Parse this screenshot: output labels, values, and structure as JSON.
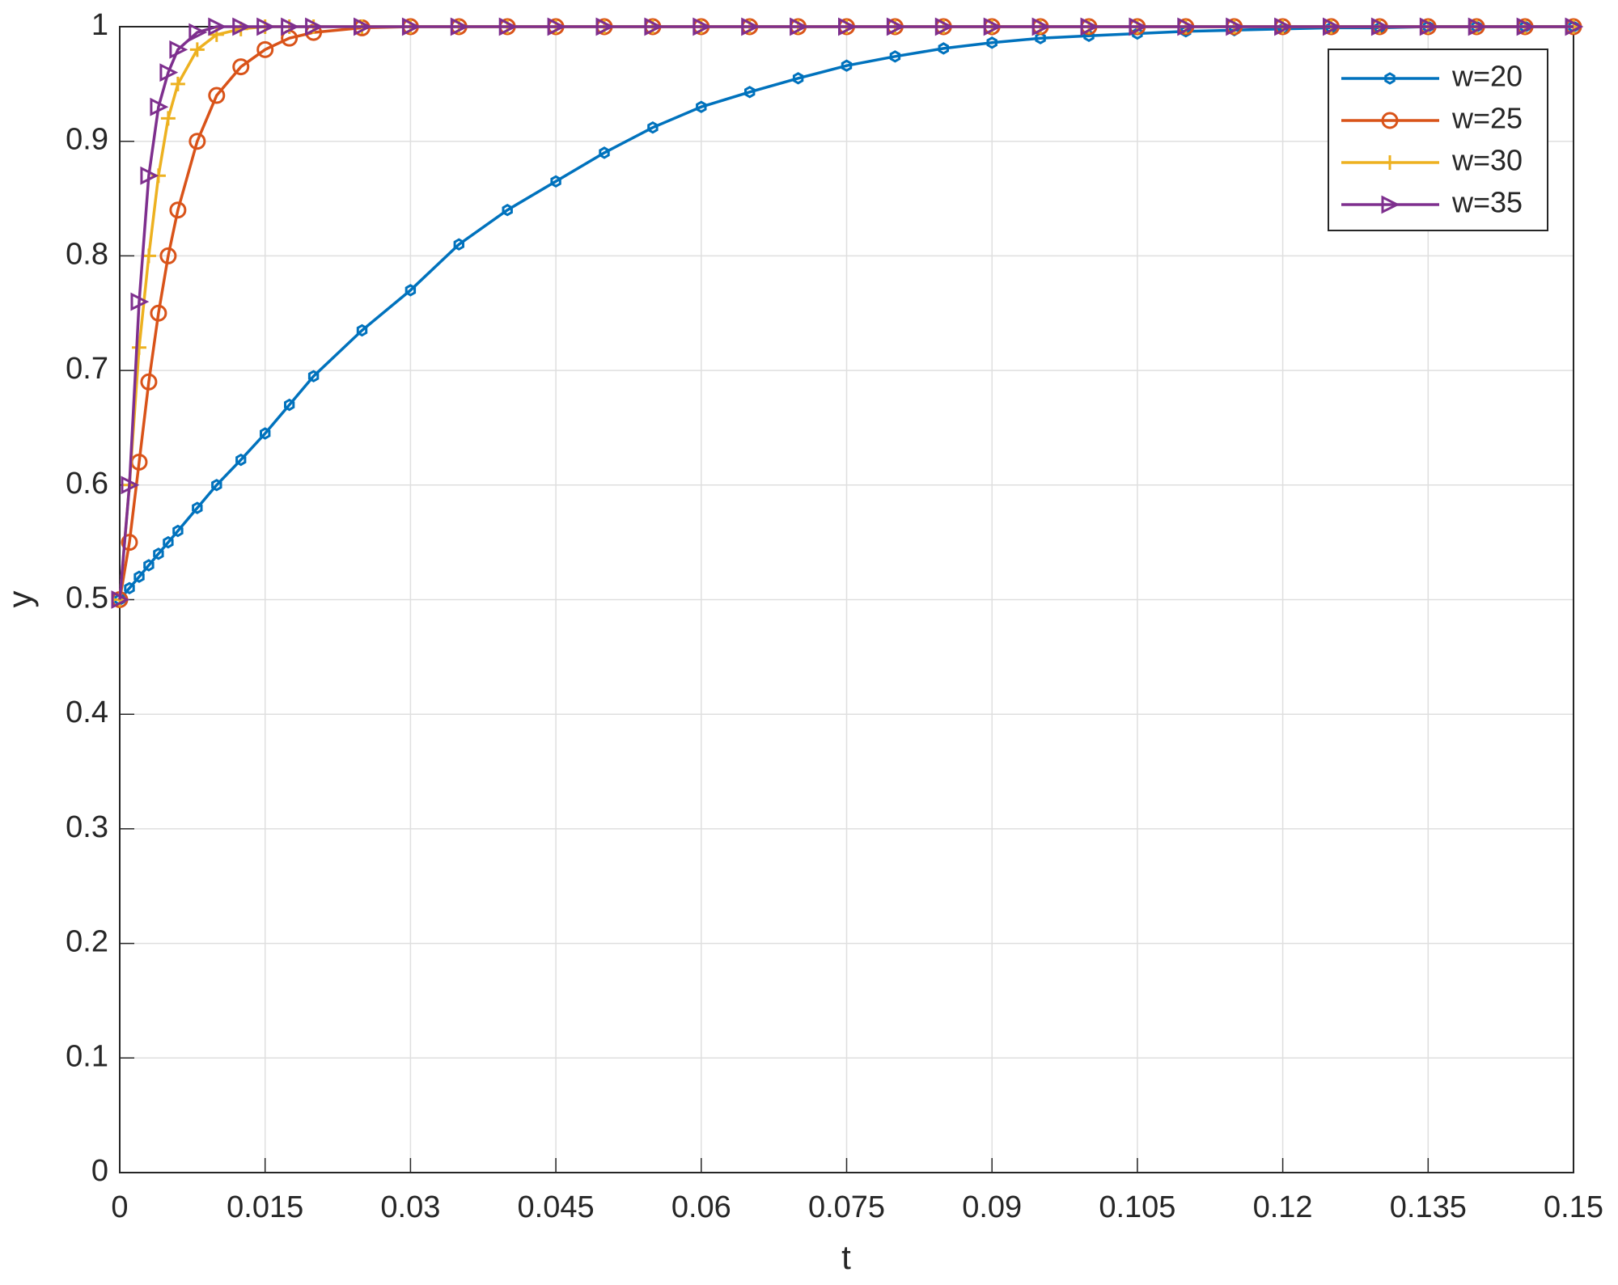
{
  "chart_data": {
    "type": "line",
    "x_label": "t",
    "y_label": "y",
    "x": [
      0,
      0.001,
      0.002,
      0.003,
      0.004,
      0.005,
      0.006,
      0.008,
      0.01,
      0.0125,
      0.015,
      0.0175,
      0.02,
      0.025,
      0.03,
      0.035,
      0.04,
      0.045,
      0.05,
      0.055,
      0.06,
      0.065,
      0.07,
      0.075,
      0.08,
      0.085,
      0.09,
      0.095,
      0.1,
      0.105,
      0.11,
      0.115,
      0.12,
      0.125,
      0.13,
      0.135,
      0.14,
      0.145,
      0.15
    ],
    "series": [
      {
        "name": "w=20",
        "color": "#0072BD",
        "marker": "hexagon",
        "values": [
          0.5,
          0.51,
          0.52,
          0.53,
          0.54,
          0.55,
          0.56,
          0.58,
          0.6,
          0.622,
          0.645,
          0.67,
          0.695,
          0.735,
          0.77,
          0.81,
          0.84,
          0.865,
          0.89,
          0.912,
          0.93,
          0.943,
          0.955,
          0.966,
          0.974,
          0.981,
          0.986,
          0.99,
          0.992,
          0.994,
          0.996,
          0.997,
          0.998,
          0.999,
          0.999,
          1,
          1,
          1,
          1
        ]
      },
      {
        "name": "w=25",
        "color": "#D95319",
        "marker": "circle",
        "values": [
          0.5,
          0.55,
          0.62,
          0.69,
          0.75,
          0.8,
          0.84,
          0.9,
          0.94,
          0.965,
          0.98,
          0.99,
          0.995,
          0.999,
          1,
          1,
          1,
          1,
          1,
          1,
          1,
          1,
          1,
          1,
          1,
          1,
          1,
          1,
          1,
          1,
          1,
          1,
          1,
          1,
          1,
          1,
          1,
          1,
          1
        ]
      },
      {
        "name": "w=30",
        "color": "#EDB120",
        "marker": "plus",
        "values": [
          0.5,
          0.6,
          0.72,
          0.8,
          0.87,
          0.92,
          0.95,
          0.98,
          0.993,
          0.998,
          1,
          1,
          1,
          1,
          1,
          1,
          1,
          1,
          1,
          1,
          1,
          1,
          1,
          1,
          1,
          1,
          1,
          1,
          1,
          1,
          1,
          1,
          1,
          1,
          1,
          1,
          1,
          1,
          1
        ]
      },
      {
        "name": "w=35",
        "color": "#7E2F8E",
        "marker": "triangle-right",
        "values": [
          0.5,
          0.6,
          0.76,
          0.87,
          0.93,
          0.96,
          0.98,
          0.995,
          1,
          1,
          1,
          1,
          1,
          1,
          1,
          1,
          1,
          1,
          1,
          1,
          1,
          1,
          1,
          1,
          1,
          1,
          1,
          1,
          1,
          1,
          1,
          1,
          1,
          1,
          1,
          1,
          1,
          1,
          1
        ]
      }
    ],
    "xlim": [
      0,
      0.15
    ],
    "xticks": [
      0,
      0.015,
      0.03,
      0.045,
      0.06,
      0.075,
      0.09,
      0.105,
      0.12,
      0.135,
      0.15
    ],
    "ylim": [
      0,
      1
    ],
    "yticks": [
      0,
      0.1,
      0.2,
      0.3,
      0.4,
      0.5,
      0.6,
      0.7,
      0.8,
      0.9,
      1
    ],
    "grid": true,
    "legend": "upper right"
  }
}
